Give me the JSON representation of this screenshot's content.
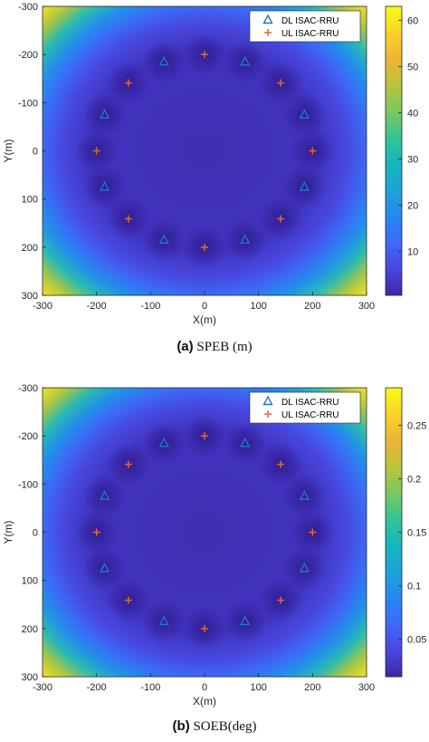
{
  "chart_data": [
    {
      "type": "heatmap",
      "caption_label": "(a)",
      "caption_text": " SPEB (m)",
      "xlabel": "X(m)",
      "ylabel": "Y(m)",
      "xlim": [
        -300,
        300
      ],
      "ylim": [
        -300,
        300
      ],
      "y_direction": "reversed",
      "xticks": [
        "-300",
        "-200",
        "-100",
        "0",
        "100",
        "200",
        "300"
      ],
      "yticks": [
        "-300",
        "-200",
        "-100",
        "0",
        "100",
        "200",
        "300"
      ],
      "colorbar_range": [
        0.5,
        63
      ],
      "colorbar_ticks": [
        "10",
        "20",
        "30",
        "40",
        "50",
        "60"
      ],
      "colorbar_tick_values": [
        10,
        20,
        30,
        40,
        50,
        60
      ],
      "colormap": "parula",
      "legend_position": "top-right",
      "series": [
        {
          "name": "DL ISAC-RRU",
          "marker": "triangle",
          "color": "#1f78c8",
          "points": [
            [
              -75,
              -185
            ],
            [
              75,
              -185
            ],
            [
              -185,
              -75
            ],
            [
              185,
              -75
            ],
            [
              -185,
              75
            ],
            [
              185,
              75
            ],
            [
              -75,
              185
            ],
            [
              75,
              185
            ]
          ]
        },
        {
          "name": "UL ISAC-RRU",
          "marker": "plus",
          "color": "#e8663a",
          "points": [
            [
              0,
              -200
            ],
            [
              -141,
              -141
            ],
            [
              141,
              -141
            ],
            [
              -200,
              0
            ],
            [
              200,
              0
            ],
            [
              -141,
              141
            ],
            [
              141,
              141
            ],
            [
              0,
              200
            ]
          ]
        }
      ]
    },
    {
      "type": "heatmap",
      "caption_label": "(b)",
      "caption_text": " SOEB(deg)",
      "xlabel": "X(m)",
      "ylabel": "Y(m)",
      "xlim": [
        -300,
        300
      ],
      "ylim": [
        -300,
        300
      ],
      "y_direction": "reversed",
      "xticks": [
        "-300",
        "-200",
        "-100",
        "0",
        "100",
        "200",
        "300"
      ],
      "yticks": [
        "-300",
        "-200",
        "-100",
        "0",
        "100",
        "200",
        "300"
      ],
      "colorbar_range": [
        0.015,
        0.285
      ],
      "colorbar_ticks": [
        "0.05",
        "0.1",
        "0.15",
        "0.2",
        "0.25"
      ],
      "colorbar_tick_values": [
        0.05,
        0.1,
        0.15,
        0.2,
        0.25
      ],
      "colormap": "parula",
      "legend_position": "top-right",
      "series": [
        {
          "name": "DL ISAC-RRU",
          "marker": "triangle",
          "color": "#1f78c8",
          "points": [
            [
              -75,
              -185
            ],
            [
              75,
              -185
            ],
            [
              -185,
              -75
            ],
            [
              185,
              -75
            ],
            [
              -185,
              75
            ],
            [
              185,
              75
            ],
            [
              -75,
              185
            ],
            [
              75,
              185
            ]
          ]
        },
        {
          "name": "UL ISAC-RRU",
          "marker": "plus",
          "color": "#e8663a",
          "points": [
            [
              0,
              -200
            ],
            [
              -141,
              -141
            ],
            [
              141,
              -141
            ],
            [
              -200,
              0
            ],
            [
              200,
              0
            ],
            [
              -141,
              141
            ],
            [
              141,
              141
            ],
            [
              0,
              200
            ]
          ]
        }
      ]
    }
  ]
}
